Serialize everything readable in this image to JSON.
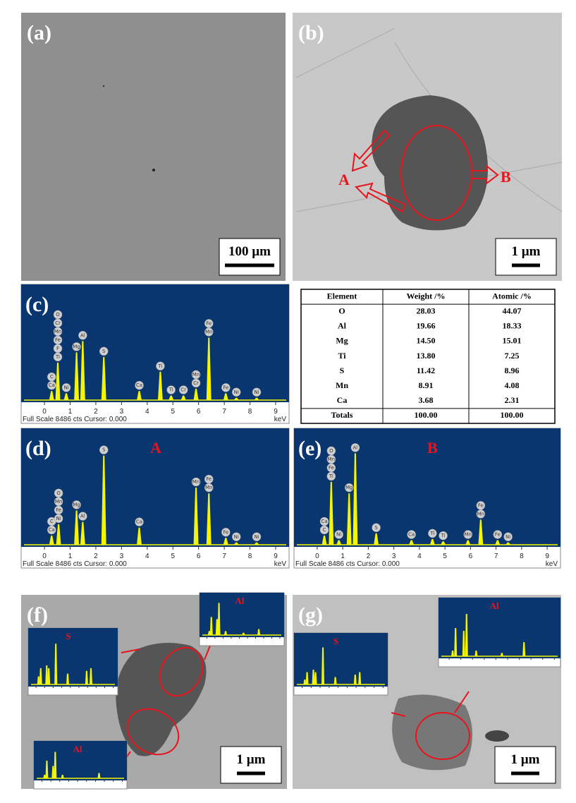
{
  "sem": [
    {
      "label": "(a)",
      "scale": "100 µm"
    },
    {
      "label": "(b)",
      "scale": "1 µm",
      "marks": [
        "A",
        "B"
      ]
    },
    {
      "label": "(f)",
      "scale": "1 µm",
      "insets": [
        {
          "title": "S",
          "peaks": [
            {
              "x": 0.3,
              "h": 0.15
            },
            {
              "x": 0.55,
              "h": 0.3
            },
            {
              "x": 1.25,
              "h": 0.35
            },
            {
              "x": 1.49,
              "h": 0.3
            },
            {
              "x": 2.31,
              "h": 0.75
            },
            {
              "x": 3.69,
              "h": 0.2
            },
            {
              "x": 5.9,
              "h": 0.25
            },
            {
              "x": 6.4,
              "h": 0.3
            }
          ]
        },
        {
          "title": "Al",
          "peaks": [
            {
              "x": 0.3,
              "h": 0.1
            },
            {
              "x": 0.55,
              "h": 0.45
            },
            {
              "x": 1.25,
              "h": 0.4
            },
            {
              "x": 1.49,
              "h": 0.8
            },
            {
              "x": 2.31,
              "h": 0.1
            },
            {
              "x": 4.51,
              "h": 0.06
            },
            {
              "x": 6.4,
              "h": 0.15
            }
          ]
        },
        {
          "title": "Al",
          "peaks": [
            {
              "x": 0.3,
              "h": 0.1
            },
            {
              "x": 0.55,
              "h": 0.5
            },
            {
              "x": 1.25,
              "h": 0.35
            },
            {
              "x": 1.49,
              "h": 0.75
            },
            {
              "x": 2.31,
              "h": 0.1
            },
            {
              "x": 6.4,
              "h": 0.15
            }
          ]
        }
      ]
    },
    {
      "label": "(g)",
      "scale": "1 µm",
      "insets": [
        {
          "title": "S",
          "peaks": [
            {
              "x": 0.3,
              "h": 0.1
            },
            {
              "x": 0.55,
              "h": 0.25
            },
            {
              "x": 1.25,
              "h": 0.3
            },
            {
              "x": 1.49,
              "h": 0.25
            },
            {
              "x": 2.31,
              "h": 0.75
            },
            {
              "x": 3.69,
              "h": 0.15
            },
            {
              "x": 5.9,
              "h": 0.2
            },
            {
              "x": 6.4,
              "h": 0.25
            }
          ]
        },
        {
          "title": "Al",
          "peaks": [
            {
              "x": 0.3,
              "h": 0.1
            },
            {
              "x": 0.55,
              "h": 0.5
            },
            {
              "x": 1.25,
              "h": 0.45
            },
            {
              "x": 1.49,
              "h": 0.75
            },
            {
              "x": 2.31,
              "h": 0.1
            },
            {
              "x": 4.51,
              "h": 0.06
            },
            {
              "x": 6.4,
              "h": 0.25
            }
          ]
        }
      ]
    }
  ],
  "spectrum_axis": {
    "ticks": [
      0,
      1,
      2,
      3,
      4,
      5,
      6,
      7,
      8,
      9
    ],
    "unit": "keV",
    "footer": "Full Scale 8486 cts Cursor: 0.000"
  },
  "spectra": [
    {
      "label": "(c)",
      "peaks": [
        {
          "x": 0.28,
          "h": 0.08,
          "labels": [
            "C",
            "Ca"
          ]
        },
        {
          "x": 0.52,
          "h": 0.33,
          "labels": [
            "O",
            "Cr",
            "Mn",
            "Fe",
            "F",
            "Ti"
          ]
        },
        {
          "x": 0.85,
          "h": 0.06,
          "labels": [
            "Ni"
          ]
        },
        {
          "x": 1.25,
          "h": 0.42,
          "labels": [
            "Mg"
          ]
        },
        {
          "x": 1.49,
          "h": 0.52,
          "labels": [
            "Al"
          ]
        },
        {
          "x": 2.31,
          "h": 0.38,
          "labels": [
            "S"
          ]
        },
        {
          "x": 3.69,
          "h": 0.08,
          "labels": [
            "Ca"
          ]
        },
        {
          "x": 4.51,
          "h": 0.25,
          "labels": [
            "Ti"
          ]
        },
        {
          "x": 4.93,
          "h": 0.04,
          "labels": [
            "Ti"
          ]
        },
        {
          "x": 5.41,
          "h": 0.04,
          "labels": [
            "Cr"
          ]
        },
        {
          "x": 5.9,
          "h": 0.1,
          "labels": [
            "Mn",
            "Cr"
          ]
        },
        {
          "x": 6.4,
          "h": 0.55,
          "labels": [
            "Fe",
            "Mn"
          ]
        },
        {
          "x": 7.06,
          "h": 0.06,
          "labels": [
            "Fe"
          ]
        },
        {
          "x": 7.47,
          "h": 0.02,
          "labels": [
            "Ni"
          ]
        },
        {
          "x": 8.26,
          "h": 0.02,
          "labels": [
            "Ni"
          ]
        }
      ]
    },
    {
      "label": "(d)",
      "title": "A",
      "peaks": [
        {
          "x": 0.28,
          "h": 0.08,
          "labels": [
            "C",
            "Ca"
          ]
        },
        {
          "x": 0.55,
          "h": 0.18,
          "labels": [
            "O",
            "Mn",
            "Fe",
            "Ni"
          ]
        },
        {
          "x": 1.25,
          "h": 0.3,
          "labels": [
            "Mg"
          ]
        },
        {
          "x": 1.49,
          "h": 0.2,
          "labels": [
            "Al"
          ]
        },
        {
          "x": 2.31,
          "h": 0.78,
          "labels": [
            "S"
          ]
        },
        {
          "x": 3.69,
          "h": 0.15,
          "labels": [
            "Ca"
          ]
        },
        {
          "x": 5.9,
          "h": 0.5,
          "labels": [
            "Mn"
          ]
        },
        {
          "x": 6.4,
          "h": 0.45,
          "labels": [
            "Fe",
            "Mn"
          ]
        },
        {
          "x": 7.06,
          "h": 0.06,
          "labels": [
            "Fe"
          ]
        },
        {
          "x": 7.47,
          "h": 0.02,
          "labels": [
            "Ni"
          ]
        },
        {
          "x": 8.26,
          "h": 0.02,
          "labels": [
            "Ni"
          ]
        }
      ]
    },
    {
      "label": "(e)",
      "title": "B",
      "peaks": [
        {
          "x": 0.28,
          "h": 0.08,
          "labels": [
            "Ca",
            "C"
          ]
        },
        {
          "x": 0.55,
          "h": 0.55,
          "labels": [
            "O",
            "Mn",
            "Fe",
            "Ti"
          ]
        },
        {
          "x": 0.85,
          "h": 0.04,
          "labels": [
            "Ni"
          ]
        },
        {
          "x": 1.25,
          "h": 0.45,
          "labels": [
            "Mg"
          ]
        },
        {
          "x": 1.49,
          "h": 0.8,
          "labels": [
            "Al"
          ]
        },
        {
          "x": 2.31,
          "h": 0.1,
          "labels": [
            "S"
          ]
        },
        {
          "x": 3.69,
          "h": 0.04,
          "labels": [
            "Ca"
          ]
        },
        {
          "x": 4.51,
          "h": 0.05,
          "labels": [
            "Ti"
          ]
        },
        {
          "x": 4.93,
          "h": 0.03,
          "labels": [
            "Ti"
          ]
        },
        {
          "x": 5.9,
          "h": 0.04,
          "labels": [
            "Mn"
          ]
        },
        {
          "x": 6.4,
          "h": 0.22,
          "labels": [
            "Fe",
            "Mn"
          ]
        },
        {
          "x": 7.06,
          "h": 0.04,
          "labels": [
            "Fe"
          ]
        },
        {
          "x": 7.47,
          "h": 0.02,
          "labels": [
            "Ni"
          ]
        }
      ]
    }
  ],
  "table": {
    "header": [
      "Element",
      "Weight /%",
      "Atomic /%"
    ],
    "rows": [
      [
        "O",
        "28.03",
        "44.07"
      ],
      [
        "Al",
        "19.66",
        "18.33"
      ],
      [
        "Mg",
        "14.50",
        "15.01"
      ],
      [
        "Ti",
        "13.80",
        "7.25"
      ],
      [
        "S",
        "11.42",
        "8.96"
      ],
      [
        "Mn",
        "8.91",
        "4.08"
      ],
      [
        "Ca",
        "3.68",
        "2.31"
      ],
      [
        "Totals",
        "100.00",
        "100.00"
      ]
    ]
  }
}
